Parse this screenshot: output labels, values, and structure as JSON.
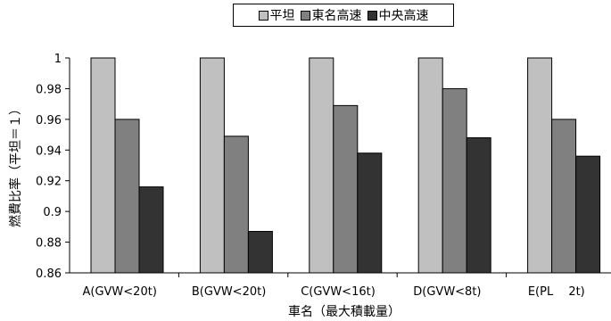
{
  "chart_data": {
    "type": "bar",
    "title": "",
    "xlabel": "車名（最大積載量）",
    "ylabel": "燃費比率（平坦＝１）",
    "categories": [
      "A(GVW<20t)",
      "B(GVW<20t)",
      "C(GVW<16t)",
      "D(GVW<8t)",
      "E(PL　 2t)"
    ],
    "ylim": [
      0.86,
      1.0
    ],
    "yticks": [
      0.86,
      0.88,
      0.9,
      0.92,
      0.94,
      0.96,
      0.98,
      1
    ],
    "ytick_labels": [
      "0.86",
      "0.88",
      "0.9",
      "0.92",
      "0.94",
      "0.96",
      "0.98",
      "1"
    ],
    "grid": false,
    "legend_position": "top-center",
    "series": [
      {
        "name": "平坦",
        "color": "#c0c0c0",
        "values": [
          1.0,
          1.0,
          1.0,
          1.0,
          1.0
        ]
      },
      {
        "name": "東名高速",
        "color": "#808080",
        "values": [
          0.96,
          0.949,
          0.969,
          0.98,
          0.96
        ]
      },
      {
        "name": "中央高速",
        "color": "#333333",
        "values": [
          0.916,
          0.887,
          0.938,
          0.948,
          0.936
        ]
      }
    ]
  }
}
